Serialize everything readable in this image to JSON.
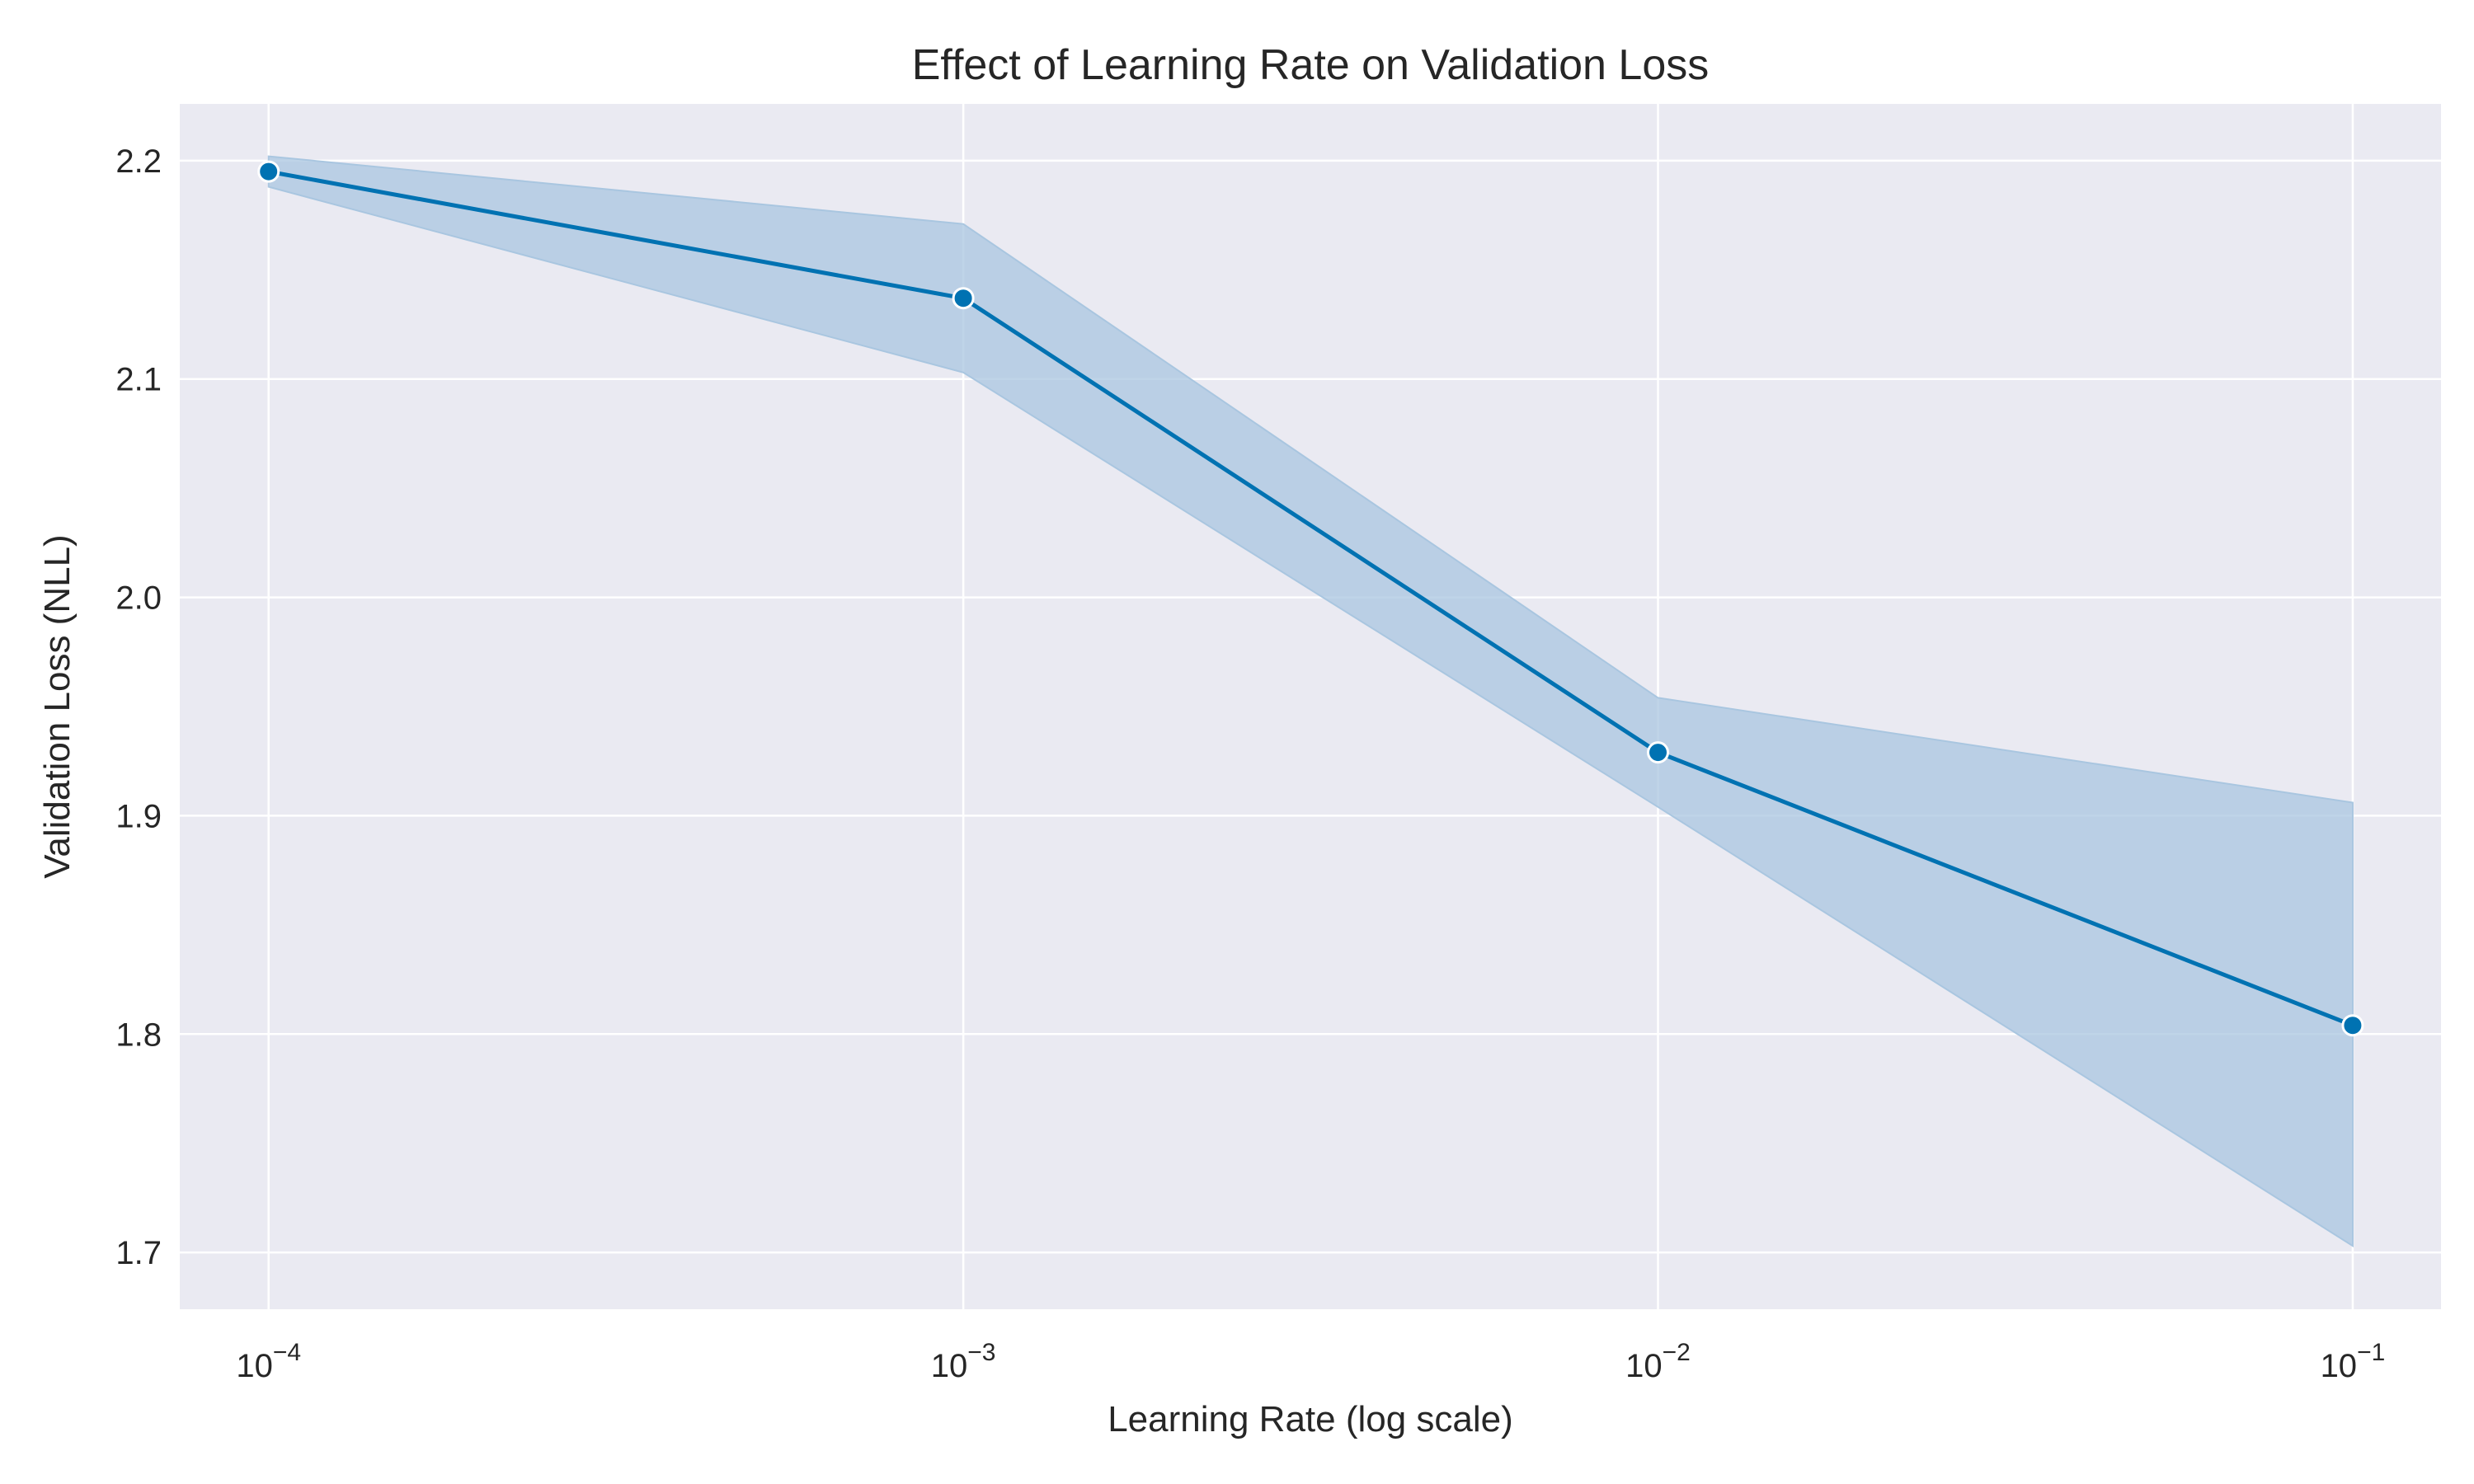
{
  "chart_data": {
    "type": "line",
    "title": "Effect of Learning Rate on Validation Loss",
    "xlabel": "Learning Rate (log scale)",
    "ylabel": "Validation Loss (NLL)",
    "xscale": "log",
    "grid": true,
    "x": [
      0.0001,
      0.001,
      0.01,
      0.1
    ],
    "y": [
      2.195,
      2.137,
      1.929,
      1.804
    ],
    "ci_lower": [
      2.188,
      2.103,
      1.904,
      1.703
    ],
    "ci_upper": [
      2.202,
      2.171,
      1.954,
      1.906
    ],
    "ylim": [
      1.674,
      2.226
    ],
    "xlim": [
      7.45e-05,
      0.134
    ],
    "x_ticks": [
      {
        "value": 0.0001,
        "base": "10",
        "exp": "−4"
      },
      {
        "value": 0.001,
        "base": "10",
        "exp": "−3"
      },
      {
        "value": 0.01,
        "base": "10",
        "exp": "−2"
      },
      {
        "value": 0.1,
        "base": "10",
        "exp": "−1"
      }
    ],
    "y_ticks": [
      {
        "value": 1.7,
        "label": "1.7"
      },
      {
        "value": 1.8,
        "label": "1.8"
      },
      {
        "value": 1.9,
        "label": "1.9"
      },
      {
        "value": 2.0,
        "label": "2.0"
      },
      {
        "value": 2.1,
        "label": "2.1"
      },
      {
        "value": 2.2,
        "label": "2.2"
      }
    ],
    "colors": {
      "line": "#0072b2",
      "band": "#a9c6e0",
      "plot_bg": "#eaeaf2",
      "grid": "#ffffff"
    }
  }
}
